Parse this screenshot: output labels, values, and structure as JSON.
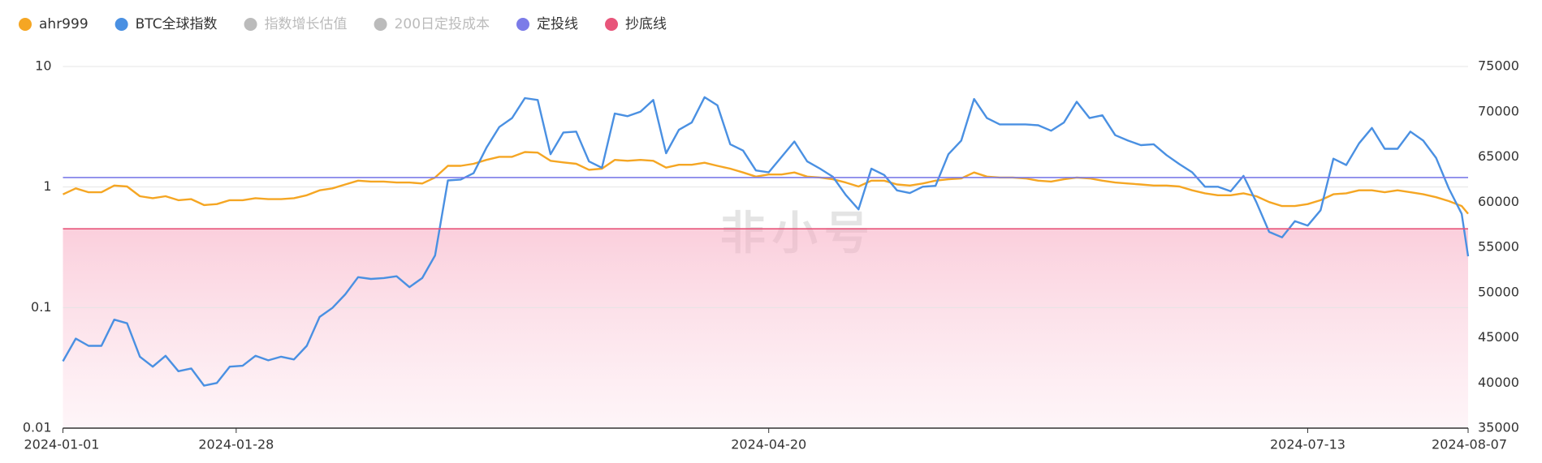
{
  "chart_data": {
    "type": "line",
    "watermark": "非小号",
    "x": [
      "2024-01-01",
      "2024-01-03",
      "2024-01-05",
      "2024-01-07",
      "2024-01-09",
      "2024-01-11",
      "2024-01-13",
      "2024-01-15",
      "2024-01-17",
      "2024-01-19",
      "2024-01-21",
      "2024-01-23",
      "2024-01-25",
      "2024-01-27",
      "2024-01-29",
      "2024-01-31",
      "2024-02-02",
      "2024-02-04",
      "2024-02-06",
      "2024-02-08",
      "2024-02-10",
      "2024-02-12",
      "2024-02-14",
      "2024-02-16",
      "2024-02-18",
      "2024-02-20",
      "2024-02-22",
      "2024-02-24",
      "2024-02-26",
      "2024-02-28",
      "2024-03-01",
      "2024-03-03",
      "2024-03-05",
      "2024-03-07",
      "2024-03-09",
      "2024-03-11",
      "2024-03-13",
      "2024-03-15",
      "2024-03-17",
      "2024-03-19",
      "2024-03-21",
      "2024-03-23",
      "2024-03-25",
      "2024-03-27",
      "2024-03-29",
      "2024-03-31",
      "2024-04-02",
      "2024-04-04",
      "2024-04-06",
      "2024-04-08",
      "2024-04-10",
      "2024-04-12",
      "2024-04-14",
      "2024-04-16",
      "2024-04-18",
      "2024-04-20",
      "2024-04-22",
      "2024-04-24",
      "2024-04-26",
      "2024-04-28",
      "2024-04-30",
      "2024-05-02",
      "2024-05-04",
      "2024-05-06",
      "2024-05-08",
      "2024-05-10",
      "2024-05-12",
      "2024-05-14",
      "2024-05-16",
      "2024-05-18",
      "2024-05-20",
      "2024-05-22",
      "2024-05-24",
      "2024-05-26",
      "2024-05-28",
      "2024-05-30",
      "2024-06-01",
      "2024-06-03",
      "2024-06-05",
      "2024-06-07",
      "2024-06-09",
      "2024-06-11",
      "2024-06-13",
      "2024-06-15",
      "2024-06-17",
      "2024-06-19",
      "2024-06-21",
      "2024-06-23",
      "2024-06-25",
      "2024-06-27",
      "2024-06-29",
      "2024-07-01",
      "2024-07-03",
      "2024-07-05",
      "2024-07-07",
      "2024-07-09",
      "2024-07-11",
      "2024-07-13",
      "2024-07-15",
      "2024-07-17",
      "2024-07-19",
      "2024-07-21",
      "2024-07-23",
      "2024-07-25",
      "2024-07-27",
      "2024-07-29",
      "2024-07-31",
      "2024-08-02",
      "2024-08-04",
      "2024-08-06",
      "2024-08-07"
    ],
    "xlim": [
      "2024-01-01",
      "2024-08-07"
    ],
    "xticks": [
      "2024-01-01",
      "2024-01-28",
      "2024-04-20",
      "2024-07-13",
      "2024-08-07"
    ],
    "ylim": [
      0.01,
      10
    ],
    "yticks": [
      0.01,
      0.1,
      1,
      10
    ],
    "log_y": true,
    "y2lim": [
      35000,
      75000
    ],
    "y2ticks": [
      35000,
      40000,
      45000,
      50000,
      55000,
      60000,
      65000,
      70000,
      75000
    ],
    "grid": true,
    "series": [
      {
        "name": "ahr999",
        "color": "#f5a623",
        "axis": "y",
        "values": [
          0.87,
          0.975,
          0.905,
          0.905,
          1.03,
          1.01,
          0.839,
          0.809,
          0.839,
          0.778,
          0.793,
          0.709,
          0.722,
          0.778,
          0.778,
          0.809,
          0.793,
          0.793,
          0.809,
          0.855,
          0.94,
          0.975,
          1.05,
          1.13,
          1.11,
          1.11,
          1.09,
          1.09,
          1.07,
          1.2,
          1.5,
          1.5,
          1.56,
          1.68,
          1.78,
          1.78,
          1.95,
          1.93,
          1.65,
          1.6,
          1.56,
          1.39,
          1.42,
          1.68,
          1.65,
          1.68,
          1.65,
          1.45,
          1.53,
          1.53,
          1.59,
          1.5,
          1.42,
          1.32,
          1.22,
          1.27,
          1.27,
          1.32,
          1.22,
          1.2,
          1.16,
          1.09,
          1.01,
          1.13,
          1.13,
          1.05,
          1.03,
          1.07,
          1.13,
          1.16,
          1.18,
          1.32,
          1.22,
          1.2,
          1.2,
          1.18,
          1.13,
          1.11,
          1.16,
          1.2,
          1.18,
          1.13,
          1.09,
          1.07,
          1.05,
          1.03,
          1.03,
          1.01,
          0.94,
          0.887,
          0.855,
          0.855,
          0.887,
          0.839,
          0.75,
          0.696,
          0.696,
          0.722,
          0.778,
          0.871,
          0.887,
          0.94,
          0.94,
          0.905,
          0.94,
          0.905,
          0.871,
          0.824,
          0.764,
          0.696,
          0.6
        ]
      },
      {
        "name": "BTC全球指数",
        "color": "#4a90e2",
        "axis": "y2",
        "values": [
          42400,
          44900,
          44100,
          44100,
          47000,
          46600,
          42900,
          41800,
          43000,
          41300,
          41600,
          39700,
          40000,
          41800,
          41900,
          43000,
          42500,
          42900,
          42600,
          44100,
          47300,
          48300,
          49800,
          51700,
          51500,
          51600,
          51800,
          50600,
          51600,
          54100,
          62400,
          62500,
          63200,
          66000,
          68300,
          69300,
          71500,
          71300,
          65300,
          67700,
          67800,
          64500,
          63800,
          69800,
          69500,
          70000,
          71300,
          65400,
          68000,
          68800,
          71600,
          70700,
          66400,
          65700,
          63500,
          63300,
          65000,
          66700,
          64500,
          63700,
          62800,
          60800,
          59200,
          63700,
          63000,
          61300,
          61000,
          61700,
          61800,
          65300,
          66800,
          71400,
          69300,
          68600,
          68600,
          68600,
          68500,
          67900,
          68800,
          71100,
          69300,
          69600,
          67400,
          66800,
          66300,
          66400,
          65200,
          64200,
          63300,
          61700,
          61700,
          61200,
          62900,
          60000,
          56700,
          56100,
          57900,
          57400,
          59100,
          64800,
          64100,
          66500,
          68200,
          65900,
          65900,
          67800,
          66800,
          64900,
          61500,
          58700,
          54000
        ]
      },
      {
        "name": "指数增长估值",
        "color": "#bbbbbb",
        "visible": false
      },
      {
        "name": "200日定投成本",
        "color": "#bbbbbb",
        "visible": false
      },
      {
        "name": "定投线",
        "color": "#7b7be8",
        "axis": "y",
        "value": 1.2
      },
      {
        "name": "抄底线",
        "color": "#e8557a",
        "axis": "y",
        "value": 0.45,
        "fill_below": true
      }
    ]
  }
}
